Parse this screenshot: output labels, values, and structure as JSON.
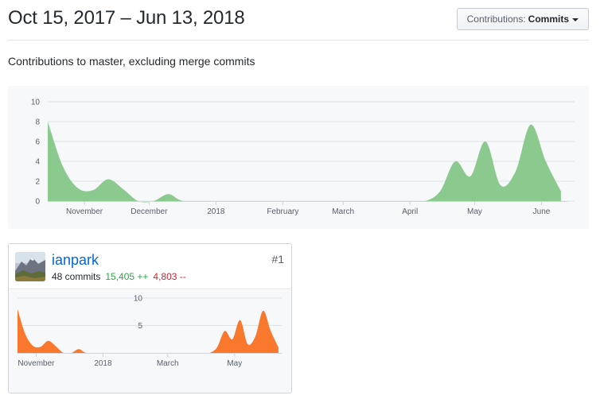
{
  "header": {
    "range_title": "Oct 15, 2017 – Jun 13, 2018",
    "dropdown_label": "Contributions:",
    "dropdown_value": "Commits"
  },
  "subtitle": "Contributions to master, excluding merge commits",
  "chart_data": [
    {
      "type": "area",
      "color": "#8cc98f",
      "x_range": [
        "2017-10-15",
        "2018-06-13"
      ],
      "ylim": [
        0,
        10
      ],
      "y_ticks": [
        "0",
        "2",
        "4",
        "6",
        "8",
        "10"
      ],
      "x_ticks": [
        {
          "date": "2017-11-01",
          "label": "November"
        },
        {
          "date": "2017-12-01",
          "label": "December"
        },
        {
          "date": "2018-01-01",
          "label": "2018"
        },
        {
          "date": "2018-02-01",
          "label": "February"
        },
        {
          "date": "2018-03-01",
          "label": "March"
        },
        {
          "date": "2018-04-01",
          "label": "April"
        },
        {
          "date": "2018-05-01",
          "label": "May"
        },
        {
          "date": "2018-06-01",
          "label": "June"
        }
      ],
      "points": [
        {
          "date": "2017-10-15",
          "value": 8.0
        },
        {
          "date": "2017-10-22",
          "value": 3.5
        },
        {
          "date": "2017-10-29",
          "value": 1.3
        },
        {
          "date": "2017-11-05",
          "value": 1.1
        },
        {
          "date": "2017-11-12",
          "value": 2.2
        },
        {
          "date": "2017-11-19",
          "value": 1.2
        },
        {
          "date": "2017-11-26",
          "value": 0.0
        },
        {
          "date": "2017-12-03",
          "value": 0.0
        },
        {
          "date": "2017-12-10",
          "value": 0.7
        },
        {
          "date": "2017-12-17",
          "value": 0.0
        },
        {
          "date": "2018-01-01",
          "value": 0.0
        },
        {
          "date": "2018-02-01",
          "value": 0.0
        },
        {
          "date": "2018-03-01",
          "value": 0.0
        },
        {
          "date": "2018-04-01",
          "value": 0.0
        },
        {
          "date": "2018-04-08",
          "value": 0.0
        },
        {
          "date": "2018-04-15",
          "value": 1.0
        },
        {
          "date": "2018-04-22",
          "value": 4.0
        },
        {
          "date": "2018-04-29",
          "value": 2.5
        },
        {
          "date": "2018-05-06",
          "value": 6.0
        },
        {
          "date": "2018-05-13",
          "value": 1.6
        },
        {
          "date": "2018-05-20",
          "value": 3.0
        },
        {
          "date": "2018-05-27",
          "value": 7.7
        },
        {
          "date": "2018-06-03",
          "value": 4.0
        },
        {
          "date": "2018-06-10",
          "value": 1.0
        }
      ]
    },
    {
      "type": "area",
      "color": "#f9782e",
      "x_range": [
        "2017-10-15",
        "2018-06-13"
      ],
      "ylim": [
        0,
        10
      ],
      "y_ticks": [
        "5",
        "10"
      ],
      "x_ticks": [
        {
          "date": "2017-11-01",
          "label": "November"
        },
        {
          "date": "2018-01-01",
          "label": "2018"
        },
        {
          "date": "2018-03-01",
          "label": "March"
        },
        {
          "date": "2018-05-01",
          "label": "May"
        }
      ],
      "points": [
        {
          "date": "2017-10-15",
          "value": 8.0
        },
        {
          "date": "2017-10-22",
          "value": 3.5
        },
        {
          "date": "2017-10-29",
          "value": 1.3
        },
        {
          "date": "2017-11-05",
          "value": 1.1
        },
        {
          "date": "2017-11-12",
          "value": 2.2
        },
        {
          "date": "2017-11-19",
          "value": 1.2
        },
        {
          "date": "2017-11-26",
          "value": 0.0
        },
        {
          "date": "2017-12-03",
          "value": 0.0
        },
        {
          "date": "2017-12-10",
          "value": 0.7
        },
        {
          "date": "2017-12-17",
          "value": 0.0
        },
        {
          "date": "2018-01-01",
          "value": 0.0
        },
        {
          "date": "2018-02-01",
          "value": 0.0
        },
        {
          "date": "2018-03-01",
          "value": 0.0
        },
        {
          "date": "2018-04-01",
          "value": 0.0
        },
        {
          "date": "2018-04-08",
          "value": 0.0
        },
        {
          "date": "2018-04-15",
          "value": 1.0
        },
        {
          "date": "2018-04-22",
          "value": 4.0
        },
        {
          "date": "2018-04-29",
          "value": 2.5
        },
        {
          "date": "2018-05-06",
          "value": 6.0
        },
        {
          "date": "2018-05-13",
          "value": 1.6
        },
        {
          "date": "2018-05-20",
          "value": 3.0
        },
        {
          "date": "2018-05-27",
          "value": 7.7
        },
        {
          "date": "2018-06-03",
          "value": 4.0
        },
        {
          "date": "2018-06-10",
          "value": 1.0
        }
      ]
    }
  ],
  "contributor": {
    "username": "ianpark",
    "rank": "#1",
    "commits": "48 commits",
    "additions": "15,405 ++",
    "deletions": "4,803 --"
  }
}
